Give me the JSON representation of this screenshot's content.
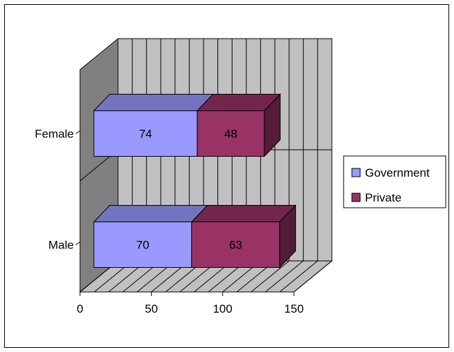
{
  "chart_data": {
    "type": "bar",
    "orientation": "horizontal",
    "stacked": true,
    "style": "3d",
    "categories": [
      "Female",
      "Male"
    ],
    "series": [
      {
        "name": "Government",
        "values": [
          74,
          70
        ],
        "color": "#9999ff"
      },
      {
        "name": "Private",
        "values": [
          48,
          63
        ],
        "color": "#993366"
      }
    ],
    "data_labels": [
      [
        "74",
        "48"
      ],
      [
        "70",
        "63"
      ]
    ],
    "xlim": [
      0,
      150
    ],
    "x_ticks": [
      0,
      50,
      100,
      150
    ],
    "x_tick_labels": [
      "0",
      "50",
      "100",
      "150"
    ],
    "grid": true,
    "legend_position": "right"
  },
  "colors": {
    "wall": "#c0c0c0",
    "side_wall": "#808080",
    "floor": "#c0c0c0",
    "gridline": "#000000"
  }
}
